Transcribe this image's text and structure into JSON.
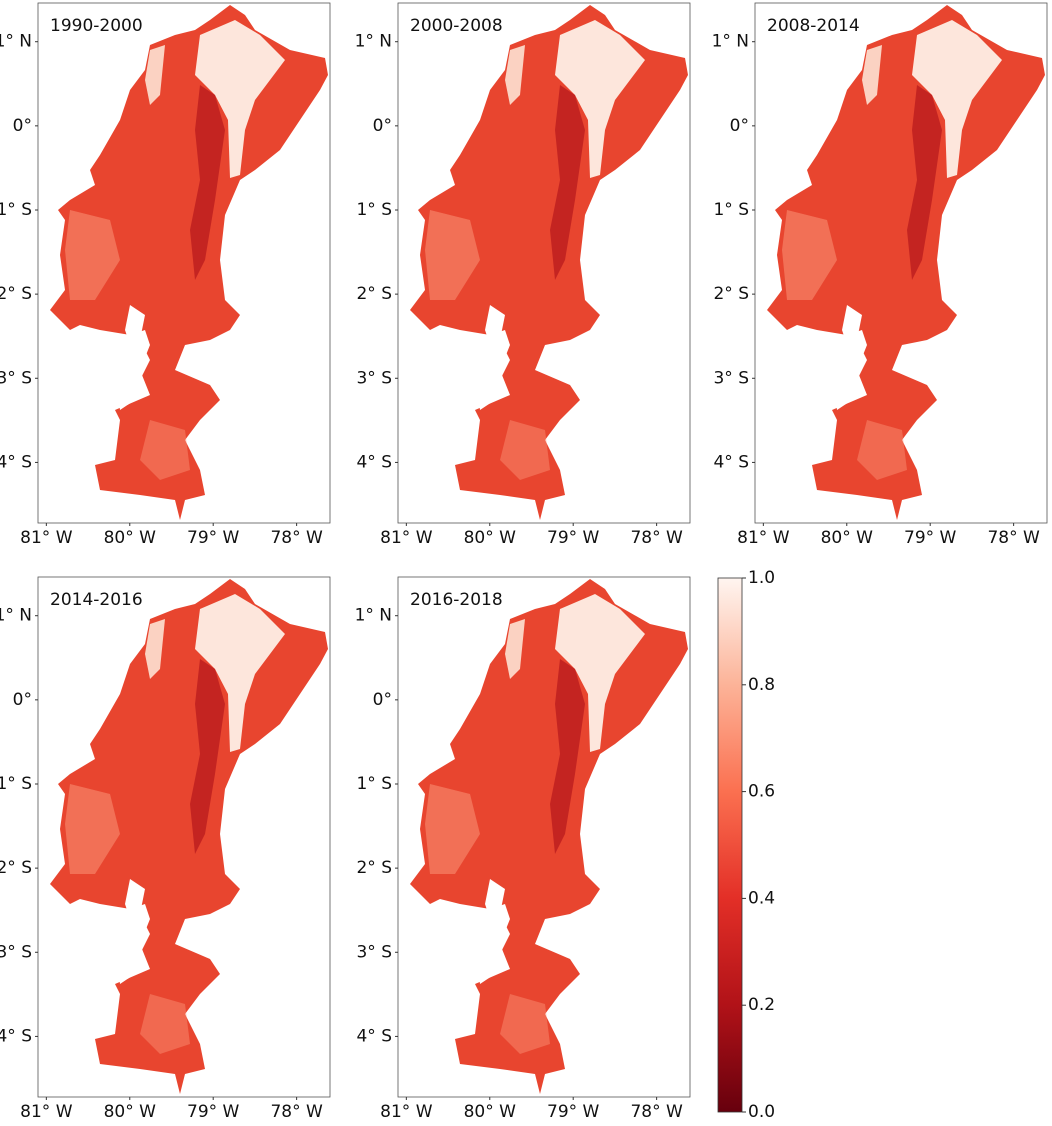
{
  "panels": [
    {
      "title": "1990-2000"
    },
    {
      "title": "2000-2008"
    },
    {
      "title": "2008-2014"
    },
    {
      "title": "2014-2016"
    },
    {
      "title": "2016-2018"
    }
  ],
  "axes": {
    "xlim": [
      -81.1,
      -77.6
    ],
    "ylim": [
      -4.72,
      1.46
    ],
    "xticks": [
      {
        "value": -81,
        "label": "81° W"
      },
      {
        "value": -80,
        "label": "80° W"
      },
      {
        "value": -79,
        "label": "79° W"
      },
      {
        "value": -78,
        "label": "78° W"
      }
    ],
    "yticks": [
      {
        "value": 1,
        "label": "1° N"
      },
      {
        "value": 0,
        "label": "0°"
      },
      {
        "value": -1,
        "label": "1° S"
      },
      {
        "value": -2,
        "label": "2° S"
      },
      {
        "value": -3,
        "label": "3° S"
      },
      {
        "value": -4,
        "label": "4° S"
      }
    ]
  },
  "colorbar": {
    "clim": [
      0,
      1
    ],
    "ticks": [
      {
        "value": 0,
        "label": "0.0"
      },
      0.2,
      0.4,
      0.6,
      0.8,
      {
        "value": 1,
        "label": "1.0"
      }
    ]
  }
}
